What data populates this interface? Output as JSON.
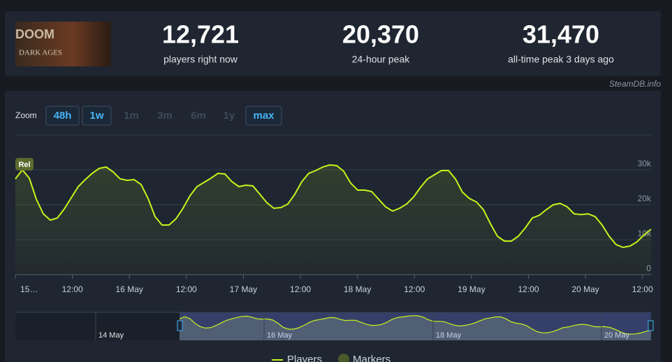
{
  "game": {
    "logo_top": "DOOM",
    "logo_bottom": "DARK AGES"
  },
  "stats": [
    {
      "value": "12,721",
      "label": "players right now"
    },
    {
      "value": "20,370",
      "label": "24-hour peak"
    },
    {
      "value": "31,470",
      "label": "all-time peak 3 days ago"
    }
  ],
  "credit": "SteamDB.info",
  "zoom": {
    "label": "Zoom",
    "buttons": [
      {
        "label": "48h",
        "enabled": true
      },
      {
        "label": "1w",
        "enabled": true
      },
      {
        "label": "1m",
        "enabled": false
      },
      {
        "label": "3m",
        "enabled": false
      },
      {
        "label": "6m",
        "enabled": false
      },
      {
        "label": "1y",
        "enabled": false
      },
      {
        "label": "max",
        "enabled": true
      }
    ]
  },
  "chart_data": {
    "type": "line",
    "xtick_labels": [
      "15…",
      "12:00",
      "16 May",
      "12:00",
      "17 May",
      "12:00",
      "18 May",
      "12:00",
      "19 May",
      "12:00",
      "20 May",
      "12:00"
    ],
    "ylim": [
      0,
      40000
    ],
    "yticks": [
      0,
      {
        "value": 10000,
        "label": "10k"
      },
      {
        "value": 20000,
        "label": "20k"
      },
      {
        "value": 30000,
        "label": "30k"
      }
    ],
    "grid": true,
    "series": [
      {
        "name": "Players",
        "color": "#c6f31c",
        "values": [
          27400,
          30000,
          27600,
          21600,
          17400,
          15600,
          16200,
          18800,
          22000,
          25200,
          27200,
          29000,
          30400,
          30800,
          29400,
          27400,
          27000,
          27200,
          25800,
          21800,
          16600,
          14200,
          14200,
          16000,
          19000,
          22600,
          25200,
          26400,
          27600,
          29000,
          28800,
          26600,
          25200,
          25600,
          25400,
          23000,
          20600,
          19000,
          19200,
          20200,
          23000,
          26600,
          29000,
          29800,
          30800,
          31400,
          31200,
          29600,
          26200,
          24200,
          24200,
          23800,
          21600,
          19400,
          18200,
          19000,
          20200,
          22200,
          25000,
          27400,
          28600,
          29800,
          29800,
          27400,
          23600,
          21800,
          20800,
          18600,
          14600,
          11000,
          9600,
          9600,
          11000,
          13400,
          16200,
          17000,
          18600,
          20000,
          20400,
          19400,
          17400,
          17200,
          17400,
          16600,
          14200,
          11000,
          8600,
          7800,
          8200,
          9400,
          11400,
          13000
        ]
      }
    ],
    "markers": [
      {
        "label": "Rel"
      }
    ],
    "marker_legend": "Markers",
    "navigator_labels": [
      "14 May",
      "16 May",
      "18 May",
      "20 May"
    ]
  }
}
